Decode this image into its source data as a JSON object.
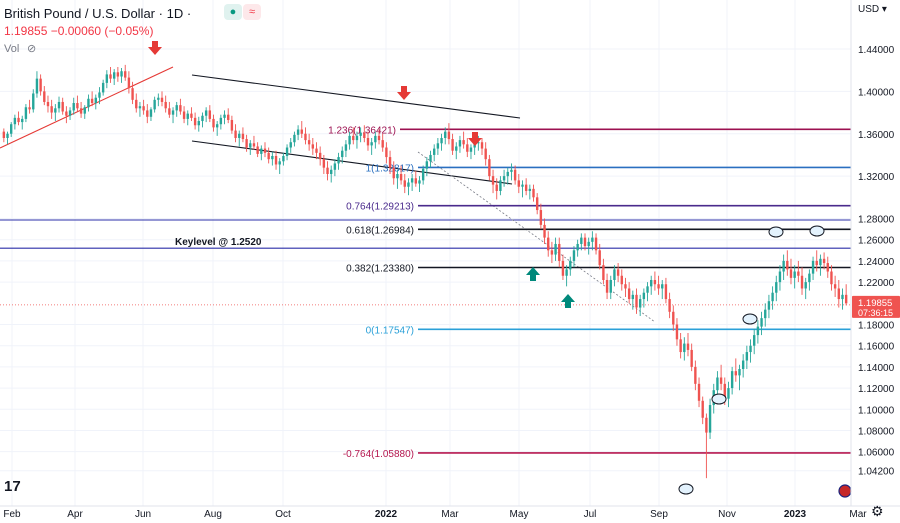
{
  "header": {
    "symbol": "British Pound / U.S. Dollar",
    "separator1": "·",
    "interval": "1D",
    "separator2": "·",
    "price_line": "1.19855 −0.00060 (−0.05%)",
    "volume_label": "Vol",
    "currency": "USD"
  },
  "icons": {
    "market_status": "green-dot-icon",
    "wave": "wave-icon",
    "visibility": "eye-slash-icon",
    "brand": "tradingview-logo",
    "settings": "gear-icon",
    "flag": "uk-flag-icon"
  },
  "colors": {
    "bull": "#26a69a",
    "bear": "#ef5350",
    "arrow_down": "#e53935",
    "arrow_up": "#00897b",
    "price_line": "#ef5350"
  },
  "chart_data": {
    "type": "candlestick",
    "x_ticks": [
      "Feb",
      "Apr",
      "Jun",
      "Aug",
      "Oct",
      "2022",
      "Mar",
      "May",
      "Jul",
      "Sep",
      "Nov",
      "2023",
      "Mar"
    ],
    "y_ticks": [
      "1.44000",
      "1.40000",
      "1.36000",
      "1.32000",
      "1.28000",
      "1.26000",
      "1.24000",
      "1.22000",
      "1.18000",
      "1.16000",
      "1.14000",
      "1.12000",
      "1.10000",
      "1.08000",
      "1.06000",
      "1.04200"
    ],
    "y_tick_values": [
      1.44,
      1.4,
      1.36,
      1.32,
      1.28,
      1.26,
      1.24,
      1.22,
      1.18,
      1.16,
      1.14,
      1.12,
      1.1,
      1.08,
      1.06,
      1.042
    ],
    "ylim": [
      1.021,
      1.473
    ],
    "current_price": "1.19855",
    "countdown": "07:36:15",
    "fib_levels": [
      {
        "label": "1.236(1.36421)",
        "value": 1.36421,
        "color": "#9c1150"
      },
      {
        "label": "1(1.32817)",
        "value": 1.32817,
        "color": "#2a6fc0"
      },
      {
        "label": "0.764(1.29213)",
        "value": 1.29213,
        "color": "#4a2a8c"
      },
      {
        "label": "0.618(1.26984)",
        "value": 1.26984,
        "color": "#131722"
      },
      {
        "label": "0.382(1.23380)",
        "value": 1.2338,
        "color": "#131722"
      },
      {
        "label": "0(1.17547)",
        "value": 1.17547,
        "color": "#2aa0d8"
      },
      {
        "label": "-0.764(1.05880)",
        "value": 1.0588,
        "color": "#b5174f"
      }
    ],
    "keylevel": {
      "label": "Keylevel @ 1.2520",
      "value": 1.252,
      "color": "#2b2fa8"
    },
    "candles_approx": [
      [
        1.362,
        1.365,
        1.352,
        1.356
      ],
      [
        1.356,
        1.362,
        1.35,
        1.36
      ],
      [
        1.36,
        1.371,
        1.357,
        1.369
      ],
      [
        1.369,
        1.378,
        1.364,
        1.375
      ],
      [
        1.375,
        1.381,
        1.368,
        1.371
      ],
      [
        1.371,
        1.377,
        1.364,
        1.374
      ],
      [
        1.374,
        1.388,
        1.371,
        1.385
      ],
      [
        1.385,
        1.392,
        1.379,
        1.383
      ],
      [
        1.383,
        1.402,
        1.38,
        1.398
      ],
      [
        1.398,
        1.419,
        1.394,
        1.412
      ],
      [
        1.412,
        1.416,
        1.396,
        1.4
      ],
      [
        1.4,
        1.405,
        1.387,
        1.39
      ],
      [
        1.39,
        1.396,
        1.38,
        1.386
      ],
      [
        1.386,
        1.392,
        1.374,
        1.38
      ],
      [
        1.38,
        1.388,
        1.372,
        1.384
      ],
      [
        1.384,
        1.395,
        1.38,
        1.39
      ],
      [
        1.39,
        1.394,
        1.378,
        1.381
      ],
      [
        1.381,
        1.386,
        1.37,
        1.377
      ],
      [
        1.377,
        1.385,
        1.373,
        1.382
      ],
      [
        1.382,
        1.394,
        1.378,
        1.389
      ],
      [
        1.389,
        1.396,
        1.381,
        1.384
      ],
      [
        1.384,
        1.39,
        1.375,
        1.379
      ],
      [
        1.379,
        1.387,
        1.374,
        1.385
      ],
      [
        1.385,
        1.397,
        1.381,
        1.393
      ],
      [
        1.393,
        1.4,
        1.386,
        1.389
      ],
      [
        1.389,
        1.397,
        1.383,
        1.394
      ],
      [
        1.394,
        1.404,
        1.388,
        1.399
      ],
      [
        1.399,
        1.411,
        1.396,
        1.408
      ],
      [
        1.408,
        1.42,
        1.403,
        1.416
      ],
      [
        1.416,
        1.423,
        1.408,
        1.412
      ],
      [
        1.412,
        1.421,
        1.406,
        1.418
      ],
      [
        1.418,
        1.423,
        1.409,
        1.414
      ],
      [
        1.414,
        1.422,
        1.408,
        1.419
      ],
      [
        1.419,
        1.425,
        1.41,
        1.413
      ],
      [
        1.413,
        1.419,
        1.398,
        1.403
      ],
      [
        1.403,
        1.409,
        1.388,
        1.392
      ],
      [
        1.392,
        1.398,
        1.38,
        1.384
      ],
      [
        1.384,
        1.39,
        1.376,
        1.386
      ],
      [
        1.386,
        1.392,
        1.378,
        1.382
      ],
      [
        1.382,
        1.388,
        1.37,
        1.376
      ],
      [
        1.376,
        1.385,
        1.372,
        1.383
      ],
      [
        1.383,
        1.395,
        1.38,
        1.392
      ],
      [
        1.392,
        1.398,
        1.386,
        1.394
      ],
      [
        1.394,
        1.4,
        1.386,
        1.39
      ],
      [
        1.39,
        1.396,
        1.38,
        1.384
      ],
      [
        1.384,
        1.39,
        1.375,
        1.378
      ],
      [
        1.378,
        1.385,
        1.37,
        1.382
      ],
      [
        1.382,
        1.39,
        1.376,
        1.387
      ],
      [
        1.387,
        1.393,
        1.378,
        1.381
      ],
      [
        1.381,
        1.386,
        1.37,
        1.374
      ],
      [
        1.374,
        1.382,
        1.368,
        1.379
      ],
      [
        1.379,
        1.385,
        1.372,
        1.375
      ],
      [
        1.375,
        1.38,
        1.364,
        1.368
      ],
      [
        1.368,
        1.376,
        1.362,
        1.372
      ],
      [
        1.372,
        1.38,
        1.366,
        1.377
      ],
      [
        1.377,
        1.385,
        1.371,
        1.382
      ],
      [
        1.382,
        1.387,
        1.371,
        1.374
      ],
      [
        1.374,
        1.378,
        1.362,
        1.366
      ],
      [
        1.366,
        1.372,
        1.358,
        1.369
      ],
      [
        1.369,
        1.378,
        1.364,
        1.375
      ],
      [
        1.375,
        1.382,
        1.369,
        1.378
      ],
      [
        1.378,
        1.384,
        1.37,
        1.373
      ],
      [
        1.373,
        1.377,
        1.36,
        1.363
      ],
      [
        1.363,
        1.369,
        1.352,
        1.356
      ],
      [
        1.356,
        1.363,
        1.348,
        1.36
      ],
      [
        1.36,
        1.366,
        1.352,
        1.355
      ],
      [
        1.355,
        1.359,
        1.343,
        1.347
      ],
      [
        1.347,
        1.354,
        1.34,
        1.351
      ],
      [
        1.351,
        1.358,
        1.345,
        1.348
      ],
      [
        1.348,
        1.352,
        1.338,
        1.341
      ],
      [
        1.341,
        1.349,
        1.335,
        1.346
      ],
      [
        1.346,
        1.352,
        1.338,
        1.342
      ],
      [
        1.342,
        1.347,
        1.332,
        1.336
      ],
      [
        1.336,
        1.343,
        1.33,
        1.339
      ],
      [
        1.339,
        1.344,
        1.326,
        1.331
      ],
      [
        1.331,
        1.337,
        1.322,
        1.334
      ],
      [
        1.334,
        1.342,
        1.33,
        1.339
      ],
      [
        1.339,
        1.35,
        1.335,
        1.347
      ],
      [
        1.347,
        1.356,
        1.342,
        1.352
      ],
      [
        1.352,
        1.362,
        1.348,
        1.359
      ],
      [
        1.359,
        1.368,
        1.354,
        1.364
      ],
      [
        1.364,
        1.372,
        1.356,
        1.36
      ],
      [
        1.36,
        1.366,
        1.35,
        1.354
      ],
      [
        1.354,
        1.36,
        1.344,
        1.35
      ],
      [
        1.35,
        1.356,
        1.34,
        1.346
      ],
      [
        1.346,
        1.352,
        1.336,
        1.342
      ],
      [
        1.342,
        1.348,
        1.33,
        1.336
      ],
      [
        1.336,
        1.34,
        1.322,
        1.328
      ],
      [
        1.328,
        1.334,
        1.316,
        1.322
      ],
      [
        1.322,
        1.33,
        1.314,
        1.326
      ],
      [
        1.326,
        1.336,
        1.32,
        1.332
      ],
      [
        1.332,
        1.342,
        1.326,
        1.338
      ],
      [
        1.338,
        1.348,
        1.332,
        1.344
      ],
      [
        1.344,
        1.354,
        1.338,
        1.35
      ],
      [
        1.35,
        1.362,
        1.345,
        1.358
      ],
      [
        1.358,
        1.366,
        1.35,
        1.354
      ],
      [
        1.354,
        1.362,
        1.346,
        1.358
      ],
      [
        1.358,
        1.366,
        1.352,
        1.361
      ],
      [
        1.361,
        1.368,
        1.352,
        1.356
      ],
      [
        1.356,
        1.362,
        1.344,
        1.349
      ],
      [
        1.349,
        1.356,
        1.34,
        1.352
      ],
      [
        1.352,
        1.362,
        1.346,
        1.358
      ],
      [
        1.358,
        1.364,
        1.35,
        1.354
      ],
      [
        1.354,
        1.36,
        1.343,
        1.347
      ],
      [
        1.347,
        1.352,
        1.332,
        1.338
      ],
      [
        1.338,
        1.344,
        1.322,
        1.328
      ],
      [
        1.328,
        1.334,
        1.312,
        1.318
      ],
      [
        1.318,
        1.326,
        1.308,
        1.322
      ],
      [
        1.322,
        1.33,
        1.312,
        1.316
      ],
      [
        1.316,
        1.322,
        1.304,
        1.31
      ],
      [
        1.31,
        1.318,
        1.302,
        1.314
      ],
      [
        1.314,
        1.322,
        1.306,
        1.318
      ],
      [
        1.318,
        1.325,
        1.31,
        1.313
      ],
      [
        1.313,
        1.32,
        1.305,
        1.316
      ],
      [
        1.316,
        1.33,
        1.312,
        1.327
      ],
      [
        1.327,
        1.338,
        1.32,
        1.334
      ],
      [
        1.334,
        1.344,
        1.328,
        1.34
      ],
      [
        1.34,
        1.35,
        1.334,
        1.346
      ],
      [
        1.346,
        1.356,
        1.34,
        1.351
      ],
      [
        1.351,
        1.36,
        1.344,
        1.356
      ],
      [
        1.356,
        1.366,
        1.35,
        1.362
      ],
      [
        1.362,
        1.37,
        1.35,
        1.355
      ],
      [
        1.355,
        1.36,
        1.34,
        1.344
      ],
      [
        1.344,
        1.352,
        1.336,
        1.348
      ],
      [
        1.348,
        1.358,
        1.342,
        1.354
      ],
      [
        1.354,
        1.362,
        1.346,
        1.35
      ],
      [
        1.35,
        1.356,
        1.338,
        1.343
      ],
      [
        1.343,
        1.35,
        1.336,
        1.347
      ],
      [
        1.347,
        1.355,
        1.34,
        1.351
      ],
      [
        1.351,
        1.358,
        1.344,
        1.352
      ],
      [
        1.352,
        1.356,
        1.34,
        1.346
      ],
      [
        1.346,
        1.352,
        1.33,
        1.336
      ],
      [
        1.336,
        1.34,
        1.316,
        1.32
      ],
      [
        1.32,
        1.326,
        1.304,
        1.312
      ],
      [
        1.312,
        1.318,
        1.298,
        1.306
      ],
      [
        1.306,
        1.32,
        1.302,
        1.316
      ],
      [
        1.316,
        1.326,
        1.31,
        1.32
      ],
      [
        1.32,
        1.328,
        1.312,
        1.324
      ],
      [
        1.324,
        1.332,
        1.316,
        1.326
      ],
      [
        1.326,
        1.33,
        1.312,
        1.316
      ],
      [
        1.316,
        1.322,
        1.304,
        1.31
      ],
      [
        1.31,
        1.316,
        1.3,
        1.312
      ],
      [
        1.312,
        1.318,
        1.302,
        1.306
      ],
      [
        1.306,
        1.312,
        1.298,
        1.308
      ],
      [
        1.308,
        1.312,
        1.296,
        1.3
      ],
      [
        1.3,
        1.304,
        1.284,
        1.288
      ],
      [
        1.288,
        1.294,
        1.27,
        1.274
      ],
      [
        1.274,
        1.28,
        1.256,
        1.262
      ],
      [
        1.262,
        1.268,
        1.244,
        1.25
      ],
      [
        1.25,
        1.258,
        1.238,
        1.246
      ],
      [
        1.246,
        1.262,
        1.24,
        1.256
      ],
      [
        1.256,
        1.262,
        1.234,
        1.24
      ],
      [
        1.24,
        1.246,
        1.222,
        1.226
      ],
      [
        1.226,
        1.236,
        1.216,
        1.232
      ],
      [
        1.232,
        1.244,
        1.226,
        1.24
      ],
      [
        1.24,
        1.254,
        1.234,
        1.25
      ],
      [
        1.25,
        1.26,
        1.244,
        1.256
      ],
      [
        1.256,
        1.266,
        1.25,
        1.262
      ],
      [
        1.262,
        1.266,
        1.25,
        1.254
      ],
      [
        1.254,
        1.262,
        1.246,
        1.258
      ],
      [
        1.258,
        1.268,
        1.25,
        1.262
      ],
      [
        1.262,
        1.266,
        1.246,
        1.25
      ],
      [
        1.25,
        1.256,
        1.232,
        1.236
      ],
      [
        1.236,
        1.242,
        1.218,
        1.222
      ],
      [
        1.222,
        1.228,
        1.204,
        1.21
      ],
      [
        1.21,
        1.226,
        1.204,
        1.222
      ],
      [
        1.222,
        1.236,
        1.216,
        1.232
      ],
      [
        1.232,
        1.238,
        1.22,
        1.226
      ],
      [
        1.226,
        1.232,
        1.212,
        1.218
      ],
      [
        1.218,
        1.224,
        1.206,
        1.214
      ],
      [
        1.214,
        1.22,
        1.2,
        1.204
      ],
      [
        1.204,
        1.212,
        1.194,
        1.208
      ],
      [
        1.208,
        1.214,
        1.19,
        1.196
      ],
      [
        1.196,
        1.208,
        1.188,
        1.204
      ],
      [
        1.204,
        1.214,
        1.196,
        1.21
      ],
      [
        1.21,
        1.22,
        1.202,
        1.216
      ],
      [
        1.216,
        1.226,
        1.208,
        1.222
      ],
      [
        1.222,
        1.23,
        1.212,
        1.218
      ],
      [
        1.218,
        1.226,
        1.208,
        1.214
      ],
      [
        1.214,
        1.222,
        1.204,
        1.218
      ],
      [
        1.218,
        1.224,
        1.2,
        1.204
      ],
      [
        1.204,
        1.21,
        1.186,
        1.192
      ],
      [
        1.192,
        1.198,
        1.174,
        1.18
      ],
      [
        1.18,
        1.186,
        1.16,
        1.166
      ],
      [
        1.166,
        1.172,
        1.148,
        1.154
      ],
      [
        1.154,
        1.168,
        1.146,
        1.162
      ],
      [
        1.162,
        1.172,
        1.15,
        1.156
      ],
      [
        1.156,
        1.162,
        1.136,
        1.14
      ],
      [
        1.14,
        1.146,
        1.118,
        1.124
      ],
      [
        1.124,
        1.13,
        1.102,
        1.108
      ],
      [
        1.108,
        1.112,
        1.086,
        1.092
      ],
      [
        1.092,
        1.096,
        1.035,
        1.078
      ],
      [
        1.078,
        1.11,
        1.072,
        1.104
      ],
      [
        1.104,
        1.124,
        1.096,
        1.118
      ],
      [
        1.118,
        1.136,
        1.11,
        1.13
      ],
      [
        1.13,
        1.142,
        1.118,
        1.124
      ],
      [
        1.124,
        1.13,
        1.104,
        1.11
      ],
      [
        1.11,
        1.126,
        1.102,
        1.12
      ],
      [
        1.12,
        1.14,
        1.114,
        1.136
      ],
      [
        1.136,
        1.148,
        1.126,
        1.132
      ],
      [
        1.132,
        1.142,
        1.118,
        1.138
      ],
      [
        1.138,
        1.152,
        1.13,
        1.146
      ],
      [
        1.146,
        1.16,
        1.138,
        1.154
      ],
      [
        1.154,
        1.166,
        1.144,
        1.16
      ],
      [
        1.16,
        1.176,
        1.152,
        1.17
      ],
      [
        1.17,
        1.184,
        1.162,
        1.178
      ],
      [
        1.178,
        1.192,
        1.17,
        1.186
      ],
      [
        1.186,
        1.2,
        1.178,
        1.194
      ],
      [
        1.194,
        1.208,
        1.186,
        1.202
      ],
      [
        1.202,
        1.216,
        1.194,
        1.21
      ],
      [
        1.21,
        1.226,
        1.202,
        1.22
      ],
      [
        1.22,
        1.236,
        1.212,
        1.23
      ],
      [
        1.23,
        1.246,
        1.222,
        1.24
      ],
      [
        1.24,
        1.25,
        1.226,
        1.232
      ],
      [
        1.232,
        1.242,
        1.218,
        1.224
      ],
      [
        1.224,
        1.236,
        1.214,
        1.23
      ],
      [
        1.23,
        1.24,
        1.22,
        1.226
      ],
      [
        1.226,
        1.234,
        1.208,
        1.214
      ],
      [
        1.214,
        1.224,
        1.204,
        1.22
      ],
      [
        1.22,
        1.232,
        1.212,
        1.228
      ],
      [
        1.228,
        1.244,
        1.222,
        1.24
      ],
      [
        1.24,
        1.25,
        1.23,
        1.236
      ],
      [
        1.236,
        1.246,
        1.226,
        1.242
      ],
      [
        1.242,
        1.248,
        1.232,
        1.238
      ],
      [
        1.238,
        1.244,
        1.224,
        1.23
      ],
      [
        1.23,
        1.236,
        1.212,
        1.218
      ],
      [
        1.218,
        1.226,
        1.206,
        1.214
      ],
      [
        1.214,
        1.222,
        1.196,
        1.204
      ],
      [
        1.204,
        1.214,
        1.194,
        1.208
      ],
      [
        1.208,
        1.218,
        1.198,
        1.2
      ]
    ]
  }
}
